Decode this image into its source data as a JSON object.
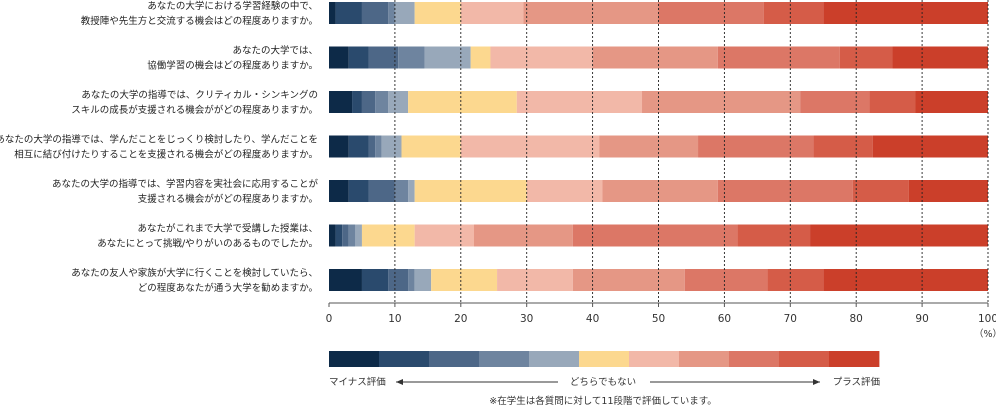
{
  "chart_data": {
    "type": "bar",
    "orientation": "horizontal",
    "stacked": true,
    "xlim": [
      0,
      100
    ],
    "xticks": [
      "0",
      "10",
      "20",
      "30",
      "40",
      "50",
      "60",
      "70",
      "80",
      "90",
      "100"
    ],
    "unit_label": "（%）",
    "gridlines": "dashed-vertical",
    "categories": [
      [
        "あなたの大学における学習経験の中で、",
        "教授陣や先生方と交流する機会はどの程度ありますか。"
      ],
      [
        "あなたの大学では、",
        "協働学習の機会はどの程度ありますか。"
      ],
      [
        "あなたの大学の指導では、クリティカル・シンキングの",
        "スキルの成長が支援される機会ががどの程度ありますか。"
      ],
      [
        "あなたの大学の指導では、学んだことをじっくり検討したり、学んだことを",
        "相互に結び付けたりすることを支援される機会がどの程度ありますか。"
      ],
      [
        "あなたの大学の指導では、学習内容を実社会に応用することが",
        "支援される機会ががどの程度ありますか。"
      ],
      [
        "あなたがこれまで大学で受講した授業は、",
        "あなたにとって挑戦/やりがいのあるものでしたか。"
      ],
      [
        "あなたの友人や家族が大学に行くことを検討していたら、",
        "どの程度あなたが通う大学を勧めますか。"
      ]
    ],
    "scale_points": 11,
    "colors": [
      "#0d2a48",
      "#2a4a6d",
      "#4d6787",
      "#6e849f",
      "#98a8ba",
      "#fcd88f",
      "#f2b8a8",
      "#e59785",
      "#dc7766",
      "#d55c48",
      "#cb3f2a"
    ],
    "values": [
      [
        1.0,
        4.0,
        4.0,
        1.0,
        3.0,
        7.0,
        9.5,
        20.5,
        16.0,
        9.0,
        25.0
      ],
      [
        3.0,
        3.0,
        4.5,
        4.0,
        7.0,
        3.0,
        15.5,
        19.0,
        18.5,
        8.0,
        14.5
      ],
      [
        3.5,
        1.5,
        2.0,
        2.0,
        3.0,
        16.5,
        19.0,
        24.0,
        10.5,
        7.0,
        11.0
      ],
      [
        3.0,
        3.0,
        1.0,
        1.0,
        3.0,
        9.0,
        21.0,
        15.0,
        17.5,
        9.0,
        17.5
      ],
      [
        3.0,
        3.0,
        4.0,
        2.0,
        1.0,
        17.0,
        11.5,
        17.5,
        20.5,
        8.5,
        12.0
      ],
      [
        1.0,
        1.0,
        1.0,
        1.0,
        1.0,
        8.0,
        9.0,
        15.0,
        25.0,
        11.0,
        27.0
      ],
      [
        5.0,
        4.0,
        3.0,
        1.0,
        2.5,
        10.0,
        11.5,
        17.0,
        12.5,
        8.5,
        25.0
      ]
    ],
    "legend": {
      "left_label": "マイナス評価",
      "center_label": "どちらでもない",
      "right_label": "プラス評価"
    },
    "footnote": "※在学生は各質問に対して11段階で評価しています。"
  }
}
